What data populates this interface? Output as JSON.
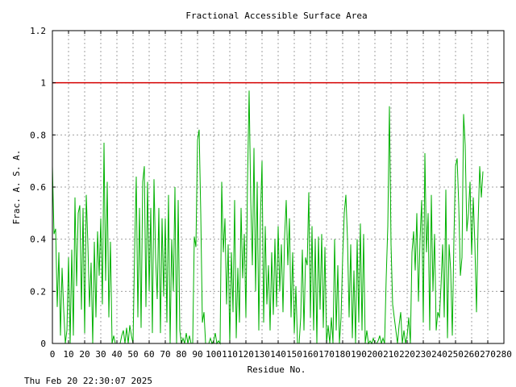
{
  "chart_data": {
    "type": "line",
    "title": "Fractional Accessible Surface Area",
    "xlabel": "Residue No.",
    "ylabel": "Frac. A. S. A.",
    "xlim": [
      0,
      280
    ],
    "ylim": [
      0,
      1.2
    ],
    "x_ticks": [
      "0",
      "10",
      "20",
      "30",
      "40",
      "50",
      "60",
      "70",
      "80",
      "90",
      "100",
      "110",
      "120",
      "130",
      "140",
      "150",
      "160",
      "170",
      "180",
      "190",
      "200",
      "210",
      "220",
      "230",
      "240",
      "250",
      "260",
      "270",
      "280"
    ],
    "y_ticks": [
      "0",
      "0.2",
      "0.4",
      "0.6",
      "0.8",
      "1",
      "1.2"
    ],
    "grid": true,
    "series": [
      {
        "color": "#00b000",
        "x_start": 0,
        "x_step": 1,
        "values": [
          0.68,
          0.42,
          0.44,
          0.14,
          0.35,
          0.03,
          0.29,
          0.13,
          0.0,
          0.05,
          0.33,
          0.0,
          0.36,
          0.03,
          0.56,
          0.22,
          0.5,
          0.53,
          0.13,
          0.52,
          0.04,
          0.57,
          0.38,
          0.14,
          0.31,
          0.0,
          0.39,
          0.1,
          0.43,
          0.26,
          0.48,
          0.15,
          0.77,
          0.24,
          0.62,
          0.1,
          0.39,
          0.0,
          0.03,
          0.0,
          0.0,
          0.0,
          0.0,
          0.03,
          0.05,
          0.0,
          0.06,
          0.0,
          0.07,
          0.03,
          0.0,
          0.36,
          0.64,
          0.1,
          0.52,
          0.06,
          0.62,
          0.68,
          0.14,
          0.62,
          0.2,
          0.52,
          0.04,
          0.63,
          0.33,
          0.17,
          0.52,
          0.04,
          0.48,
          0.18,
          0.48,
          0.08,
          0.57,
          0.0,
          0.4,
          0.2,
          0.6,
          0.0,
          0.55,
          0.05,
          0.0,
          0.02,
          0.0,
          0.04,
          0.0,
          0.03,
          0.0,
          0.0,
          0.41,
          0.37,
          0.78,
          0.82,
          0.5,
          0.08,
          0.12,
          0.0,
          0.0,
          0.0,
          0.02,
          0.0,
          0.01,
          0.04,
          0.0,
          0.01,
          0.0,
          0.62,
          0.35,
          0.48,
          0.15,
          0.38,
          0.0,
          0.35,
          0.12,
          0.55,
          0.02,
          0.29,
          0.08,
          0.52,
          0.25,
          0.42,
          0.1,
          0.62,
          0.97,
          0.55,
          0.3,
          0.75,
          0.2,
          0.62,
          0.05,
          0.48,
          0.7,
          0.08,
          0.45,
          0.15,
          0.3,
          0.05,
          0.35,
          0.11,
          0.4,
          0.14,
          0.45,
          0.2,
          0.38,
          0.12,
          0.41,
          0.55,
          0.3,
          0.48,
          0.1,
          0.35,
          0.04,
          0.22,
          0.0,
          0.0,
          0.1,
          0.36,
          0.05,
          0.33,
          0.3,
          0.58,
          0.1,
          0.45,
          0.05,
          0.4,
          0.0,
          0.41,
          0.13,
          0.42,
          0.06,
          0.37,
          0.0,
          0.07,
          0.0,
          0.1,
          0.0,
          0.4,
          0.05,
          0.3,
          0.0,
          0.1,
          0.33,
          0.5,
          0.57,
          0.4,
          0.1,
          0.38,
          0.02,
          0.28,
          0.0,
          0.4,
          0.08,
          0.46,
          0.05,
          0.42,
          0.0,
          0.05,
          0.0,
          0.01,
          0.0,
          0.02,
          0.0,
          0.0,
          0.01,
          0.03,
          0.0,
          0.02,
          0.0,
          0.25,
          0.45,
          0.91,
          0.38,
          0.15,
          0.1,
          0.05,
          0.0,
          0.07,
          0.12,
          0.0,
          0.05,
          0.0,
          0.03,
          0.1,
          0.0,
          0.35,
          0.43,
          0.28,
          0.5,
          0.16,
          0.4,
          0.55,
          0.08,
          0.73,
          0.35,
          0.5,
          0.05,
          0.57,
          0.2,
          0.42,
          0.05,
          0.12,
          0.1,
          0.22,
          0.38,
          0.1,
          0.59,
          0.02,
          0.38,
          0.28,
          0.03,
          0.4,
          0.68,
          0.71,
          0.53,
          0.26,
          0.33,
          0.88,
          0.76,
          0.43,
          0.5,
          0.62,
          0.34,
          0.56,
          0.38,
          0.12,
          0.46,
          0.68,
          0.56,
          0.66
        ]
      },
      {
        "color": "#d40000",
        "x": [
          0,
          278
        ],
        "values": [
          1.0,
          1.0
        ]
      }
    ],
    "footer_timestamp": "Thu Feb 20 22:30:07 2025"
  }
}
